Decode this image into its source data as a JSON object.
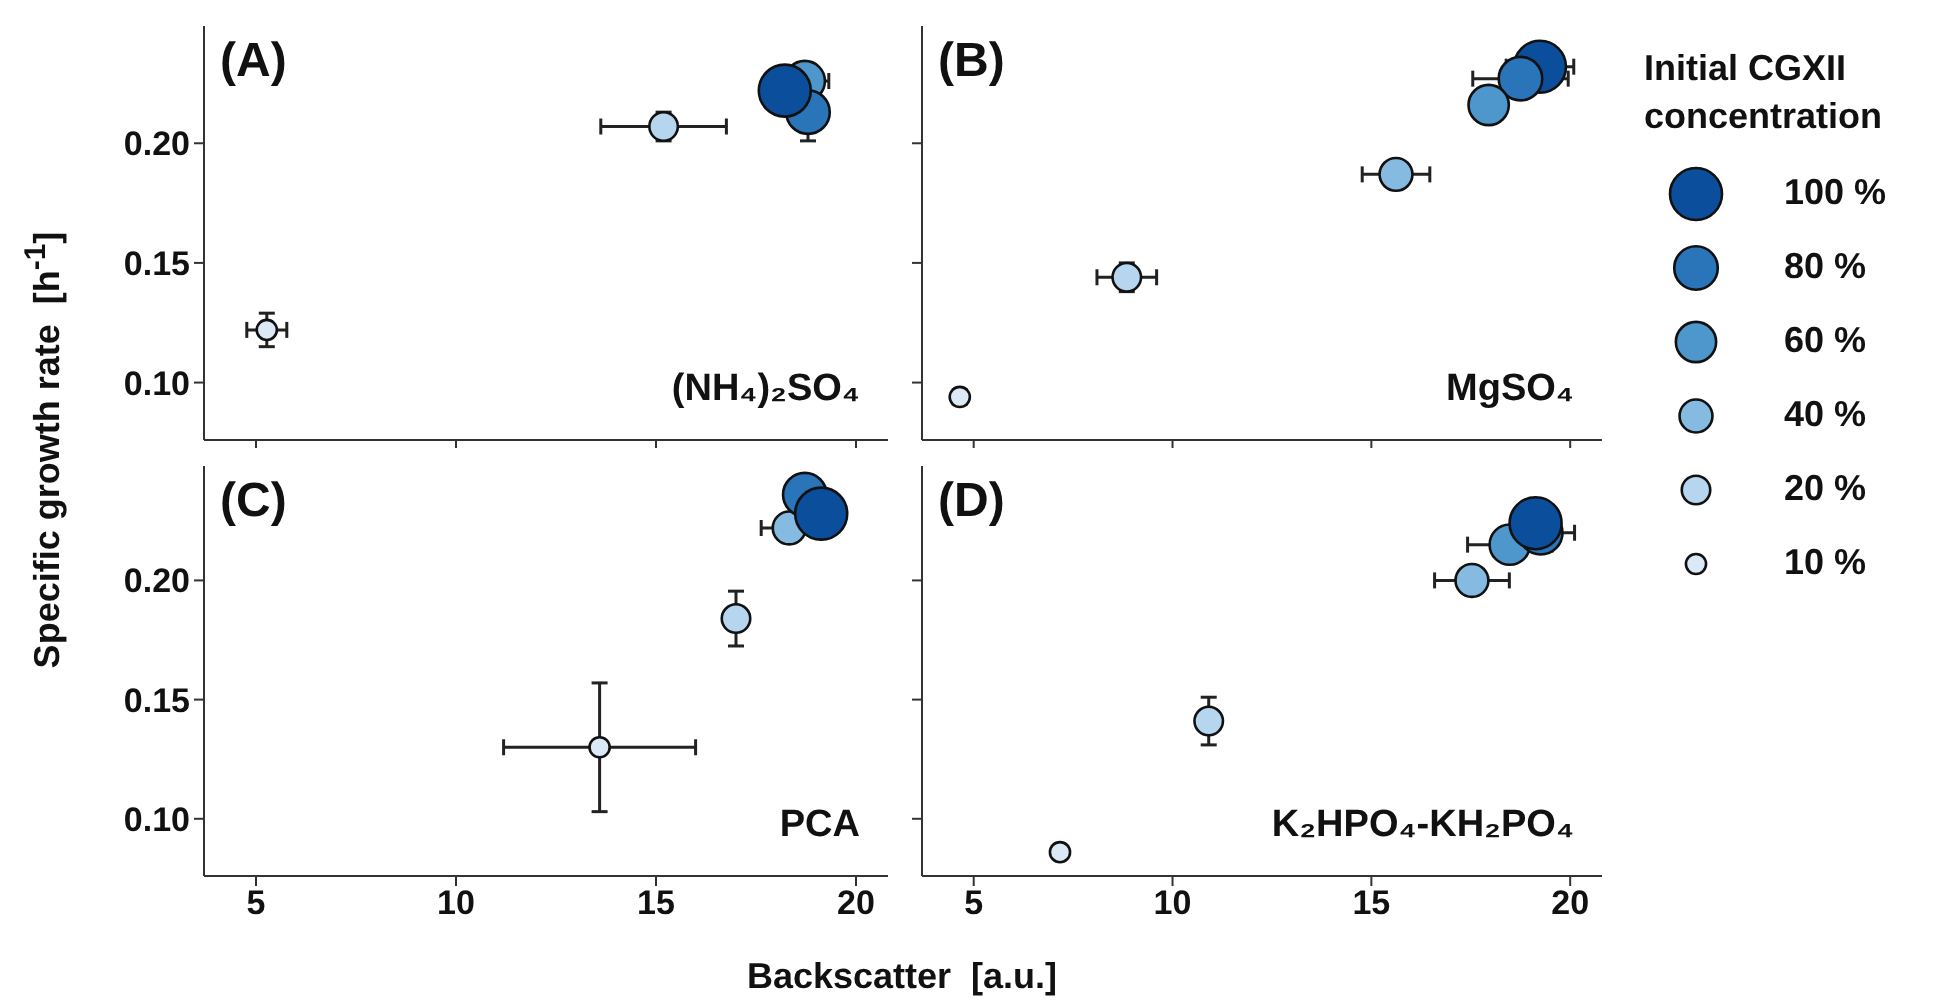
{
  "chart_data": [
    {
      "type": "bubble",
      "title": "(A)",
      "annotations": [
        "(NH₄)₂SO₄"
      ],
      "ylabel": "Specific growth rate  [h$^{-1}$]",
      "xlim": [
        3.7,
        20.8
      ],
      "xticks": [
        {
          "value": 5,
          "label": null
        },
        {
          "value": 10,
          "label": null
        },
        {
          "value": 15,
          "label": null
        },
        {
          "value": 20,
          "label": null
        }
      ],
      "ylim": [
        0.076,
        0.249
      ],
      "yticks": [
        {
          "value": 0.1,
          "label": "0.10"
        },
        {
          "value": 0.15,
          "label": "0.15"
        },
        {
          "value": 0.2,
          "label": "0.20"
        }
      ],
      "tick_labels": "y",
      "series": [
        {
          "color": "#dbe9f6",
          "x": [
            5.27
          ],
          "values": [
            0.122
          ],
          "xerrors": [
            0.5
          ],
          "errors": [
            0.007
          ],
          "sizes": [
            0.15
          ]
        },
        {
          "color": "#b6d5ee",
          "x": [
            15.19
          ],
          "values": [
            0.207
          ],
          "xerrors": [
            1.57
          ],
          "errors": [
            0.006
          ],
          "sizes": [
            0.3
          ]
        },
        {
          "color": "#4e97cc",
          "x": [
            18.72
          ],
          "values": [
            0.226
          ],
          "xerrors": [
            0.6
          ],
          "errors": [
            null
          ],
          "sizes": [
            0.6
          ]
        },
        {
          "color": "#2a75ba",
          "x": [
            18.8
          ],
          "values": [
            0.213
          ],
          "xerrors": [
            null
          ],
          "errors": [
            0.012
          ],
          "sizes": [
            0.7
          ]
        },
        {
          "color": "#0b4f9c",
          "x": [
            18.22
          ],
          "values": [
            0.222
          ],
          "xerrors": [
            0.55
          ],
          "errors": [
            null
          ],
          "sizes": [
            1
          ]
        }
      ]
    },
    {
      "type": "bubble",
      "title": "(B)",
      "annotations": [
        "MgSO₄"
      ],
      "xlim": [
        3.7,
        20.8
      ],
      "xticks": [
        {
          "value": 5,
          "label": null
        },
        {
          "value": 10,
          "label": null
        },
        {
          "value": 15,
          "label": null
        },
        {
          "value": 20,
          "label": null
        }
      ],
      "ylim": [
        0.076,
        0.249
      ],
      "yticks": [
        {
          "value": 0.1,
          "label": null
        },
        {
          "value": 0.15,
          "label": null
        },
        {
          "value": 0.2,
          "label": null
        }
      ],
      "tick_labels": false,
      "legend": "right",
      "legend_title": "Initial CGXII concentration",
      "series": [
        {
          "name": "100 %",
          "color": "#0b4f9c",
          "x": [
            19.24
          ],
          "values": [
            0.232
          ],
          "xerrors": [
            0.85
          ],
          "errors": [
            null
          ],
          "sizes": [
            1
          ]
        },
        {
          "name": "80 %",
          "color": "#2a75ba",
          "x": [
            18.75
          ],
          "values": [
            0.227
          ],
          "xerrors": [
            1.2
          ],
          "errors": [
            null
          ],
          "sizes": [
            0.7
          ]
        },
        {
          "name": "60 %",
          "color": "#4e97cc",
          "x": [
            17.95
          ],
          "values": [
            0.216
          ],
          "xerrors": [
            null
          ],
          "errors": [
            null
          ],
          "sizes": [
            0.6
          ]
        },
        {
          "name": "40 %",
          "color": "#85bbe0",
          "x": [
            15.62
          ],
          "values": [
            0.187
          ],
          "xerrors": [
            0.85
          ],
          "errors": [
            null
          ],
          "sizes": [
            0.4
          ]
        },
        {
          "name": "20 %",
          "color": "#b6d5ee",
          "x": [
            8.85
          ],
          "values": [
            0.144
          ],
          "xerrors": [
            0.75
          ],
          "errors": [
            0.006
          ],
          "sizes": [
            0.3
          ]
        },
        {
          "name": "10 %",
          "color": "#dbe9f6",
          "x": [
            4.65
          ],
          "values": [
            0.094
          ],
          "xerrors": [
            null
          ],
          "errors": [
            0.003
          ],
          "sizes": [
            0.15
          ]
        }
      ]
    },
    {
      "type": "bubble",
      "title": "(C)",
      "annotations": [
        "PCA"
      ],
      "xlabel": "Backscatter  [a.u.]",
      "xlim": [
        3.7,
        20.8
      ],
      "xticks": [
        5,
        10,
        15,
        20
      ],
      "ylim": [
        0.076,
        0.248
      ],
      "yticks": [
        {
          "value": 0.1,
          "label": "0.10"
        },
        {
          "value": 0.15,
          "label": "0.15"
        },
        {
          "value": 0.2,
          "label": "0.20"
        }
      ],
      "series": [
        {
          "color": "#dbe9f6",
          "x": [
            13.59
          ],
          "values": [
            0.13
          ],
          "xerrors": [
            2.4
          ],
          "errors": [
            0.027
          ],
          "sizes": [
            0.15
          ]
        },
        {
          "color": "#b6d5ee",
          "x": [
            17.0
          ],
          "values": [
            0.184
          ],
          "xerrors": [
            null
          ],
          "errors": [
            0.0115
          ],
          "sizes": [
            0.3
          ]
        },
        {
          "color": "#85bbe0",
          "x": [
            18.33
          ],
          "values": [
            0.222
          ],
          "xerrors": [
            0.7
          ],
          "errors": [
            null
          ],
          "sizes": [
            0.4
          ]
        },
        {
          "color": "#2a75ba",
          "x": [
            18.72
          ],
          "values": [
            0.236
          ],
          "xerrors": [
            null
          ],
          "errors": [
            null
          ],
          "sizes": [
            0.7
          ]
        },
        {
          "color": "#0b4f9c",
          "x": [
            19.13
          ],
          "values": [
            0.228
          ],
          "xerrors": [
            null
          ],
          "errors": [
            null
          ],
          "sizes": [
            1
          ]
        }
      ]
    },
    {
      "type": "bubble",
      "title": "(D)",
      "annotations": [
        "K₂HPO₄-KH₂PO₄"
      ],
      "xlim": [
        3.7,
        20.8
      ],
      "xticks": [
        5,
        10,
        15,
        20
      ],
      "ylim": [
        0.076,
        0.248
      ],
      "yticks": [
        {
          "value": 0.1,
          "label": null
        },
        {
          "value": 0.15,
          "label": null
        },
        {
          "value": 0.2,
          "label": null
        }
      ],
      "tick_labels": "x",
      "series": [
        {
          "color": "#dbe9f6",
          "x": [
            7.17
          ],
          "values": [
            0.086
          ],
          "xerrors": [
            null
          ],
          "errors": [
            null
          ],
          "sizes": [
            0.15
          ]
        },
        {
          "color": "#b6d5ee",
          "x": [
            10.91
          ],
          "values": [
            0.141
          ],
          "xerrors": [
            null
          ],
          "errors": [
            0.01
          ],
          "sizes": [
            0.3
          ]
        },
        {
          "color": "#85bbe0",
          "x": [
            17.53
          ],
          "values": [
            0.2
          ],
          "xerrors": [
            0.94
          ],
          "errors": [
            null
          ],
          "sizes": [
            0.4
          ]
        },
        {
          "color": "#4e97cc",
          "x": [
            18.48
          ],
          "values": [
            0.215
          ],
          "xerrors": [
            1.06
          ],
          "errors": [
            null
          ],
          "sizes": [
            0.6
          ]
        },
        {
          "color": "#2a75ba",
          "x": [
            19.26
          ],
          "values": [
            0.22
          ],
          "xerrors": [
            0.85
          ],
          "errors": [
            null
          ],
          "sizes": [
            0.7
          ]
        },
        {
          "color": "#0b4f9c",
          "x": [
            19.13
          ],
          "values": [
            0.224
          ],
          "xerrors": [
            null
          ],
          "errors": [
            null
          ],
          "sizes": [
            1
          ]
        }
      ]
    }
  ]
}
